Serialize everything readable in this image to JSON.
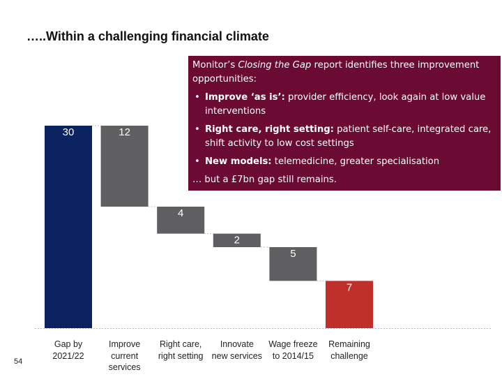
{
  "page": {
    "title": "…..Within a challenging financial climate",
    "page_number": "54"
  },
  "callout": {
    "intro_before": "Monitor’s ",
    "intro_italic": "Closing the Gap",
    "intro_after": " report identifies three improvement opportunities:",
    "bullets": [
      {
        "bold": "Improve ‘as is’:",
        "text": " provider efficiency, look again at low value interventions"
      },
      {
        "bold": "Right care, right setting:",
        "text": " patient self-care, integrated care, shift activity to low cost settings"
      },
      {
        "bold": "New models:",
        "text": " telemedicine, greater specialisation"
      }
    ],
    "footer": "… but a £7bn gap still remains."
  },
  "chart_data": {
    "type": "bar",
    "subtype": "waterfall",
    "categories": [
      "Gap by\n2021/22",
      "Improve\ncurrent\nservices",
      "Right care,\nright setting",
      "Innovate\nnew services",
      "Wage freeze\nto 2014/15",
      "Remaining\nchallenge"
    ],
    "values": [
      30,
      12,
      4,
      2,
      5,
      7
    ],
    "data_labels": [
      "30",
      "12",
      "4",
      "2",
      "5",
      "7"
    ],
    "colors": [
      "#0b2361",
      "#5f5f62",
      "#5f5f62",
      "#5f5f62",
      "#5f5f62",
      "#c0302b"
    ],
    "ylim": [
      0,
      30
    ],
    "title": "",
    "xlabel": "",
    "ylabel": "",
    "grid": false,
    "legend": "none"
  }
}
